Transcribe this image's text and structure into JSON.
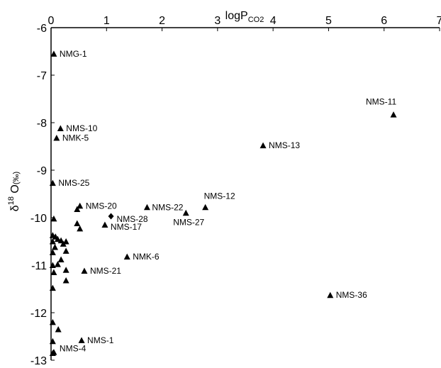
{
  "chart_data": {
    "type": "scatter",
    "title": "",
    "xlabel": {
      "main": "logP",
      "sub": "CO2"
    },
    "ylabel": {
      "delta": "δ",
      "sup": "18",
      "main": " O",
      "sub": "(‰)"
    },
    "xlim": [
      0,
      7
    ],
    "ylim": [
      -13,
      -6
    ],
    "xticks": [
      "0",
      "1",
      "2",
      "3",
      "4",
      "5",
      "6",
      "7"
    ],
    "yticks": [
      "-6",
      "-7",
      "-8",
      "-9",
      "-10",
      "-11",
      "-12",
      "-13"
    ],
    "grid": false,
    "x_axis_position": "top",
    "series": [
      {
        "marker": "triangle",
        "points": [
          {
            "x": 0.05,
            "y": -6.55,
            "label": "NMG-1"
          },
          {
            "x": 6.17,
            "y": -7.83,
            "label": "NMS-11"
          },
          {
            "x": 0.17,
            "y": -8.12,
            "label": "NMS-10"
          },
          {
            "x": 0.1,
            "y": -8.32,
            "label": "NMK-5"
          },
          {
            "x": 3.82,
            "y": -8.48,
            "label": "NMS-13"
          },
          {
            "x": 0.03,
            "y": -9.27,
            "label": "NMS-25"
          },
          {
            "x": 0.52,
            "y": -9.75,
            "label": "NMS-20"
          },
          {
            "x": 1.73,
            "y": -9.78,
            "label": "NMS-22"
          },
          {
            "x": 2.78,
            "y": -9.78,
            "label": "NMS-12"
          },
          {
            "x": 2.43,
            "y": -9.9,
            "label": "NMS-27"
          },
          {
            "x": 0.97,
            "y": -10.15,
            "label": "NMS-17"
          },
          {
            "x": 1.37,
            "y": -10.82,
            "label": "NMK-6"
          },
          {
            "x": 0.6,
            "y": -11.12,
            "label": "NMS-21"
          },
          {
            "x": 5.03,
            "y": -11.63,
            "label": "NMS-36"
          },
          {
            "x": 0.55,
            "y": -12.58,
            "label": "NMS-1"
          },
          {
            "x": 0.05,
            "y": -12.83,
            "label": "NMS-4"
          },
          {
            "x": 0.47,
            "y": -9.82,
            "label": ""
          },
          {
            "x": 0.05,
            "y": -10.02,
            "label": ""
          },
          {
            "x": 0.47,
            "y": -10.12,
            "label": ""
          },
          {
            "x": 0.52,
            "y": -10.23,
            "label": ""
          },
          {
            "x": 0.03,
            "y": -10.37,
            "label": ""
          },
          {
            "x": 0.08,
            "y": -10.4,
            "label": ""
          },
          {
            "x": 0.12,
            "y": -10.45,
            "label": ""
          },
          {
            "x": 0.03,
            "y": -10.5,
            "label": ""
          },
          {
            "x": 0.18,
            "y": -10.48,
            "label": ""
          },
          {
            "x": 0.27,
            "y": -10.5,
            "label": ""
          },
          {
            "x": 0.22,
            "y": -10.55,
            "label": ""
          },
          {
            "x": 0.07,
            "y": -10.62,
            "label": ""
          },
          {
            "x": 0.27,
            "y": -10.7,
            "label": ""
          },
          {
            "x": 0.03,
            "y": -10.73,
            "label": ""
          },
          {
            "x": 0.18,
            "y": -10.88,
            "label": ""
          },
          {
            "x": 0.12,
            "y": -10.98,
            "label": ""
          },
          {
            "x": 0.03,
            "y": -11.0,
            "label": ""
          },
          {
            "x": 0.27,
            "y": -11.1,
            "label": ""
          },
          {
            "x": 0.05,
            "y": -11.15,
            "label": ""
          },
          {
            "x": 0.27,
            "y": -11.32,
            "label": ""
          },
          {
            "x": 0.03,
            "y": -11.48,
            "label": ""
          },
          {
            "x": 0.03,
            "y": -12.2,
            "label": ""
          },
          {
            "x": 0.13,
            "y": -12.35,
            "label": ""
          },
          {
            "x": 0.03,
            "y": -12.6,
            "label": ""
          },
          {
            "x": 0.03,
            "y": -12.85,
            "label": ""
          }
        ]
      },
      {
        "marker": "diamond",
        "points": [
          {
            "x": 1.08,
            "y": -9.97,
            "label": "NMS-28"
          }
        ]
      }
    ]
  }
}
